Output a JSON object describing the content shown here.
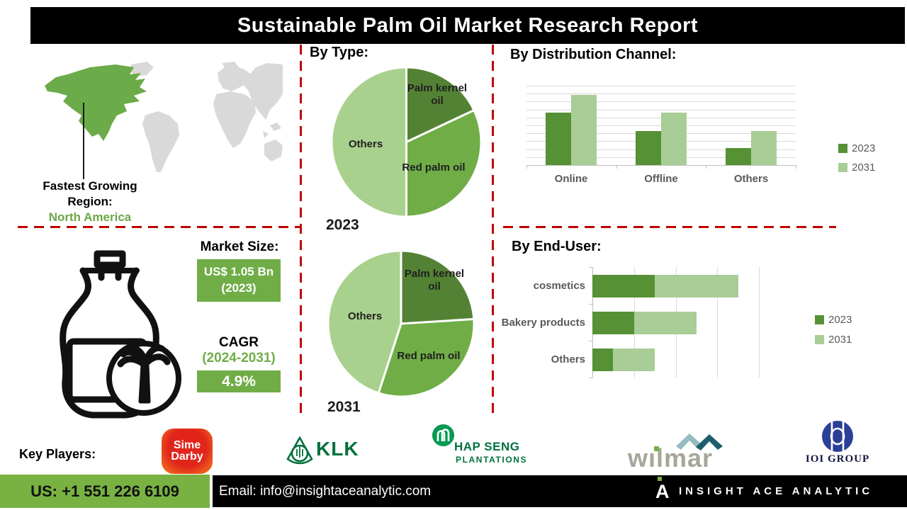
{
  "title": "Sustainable Palm Oil Market Research Report",
  "map": {
    "caption_line1": "Fastest Growing",
    "caption_line2": "Region:",
    "region": "North America",
    "highlight_color": "#70AD47",
    "base_color": "#D9D9D9"
  },
  "market_size": {
    "heading": "Market Size:",
    "value_line1": "US$ 1.05 Bn",
    "value_line2": "(2023)",
    "cagr_label": "CAGR",
    "cagr_period": "(2024-2031)",
    "cagr_value": "4.9%"
  },
  "colors": {
    "accent_green": "#70AD47",
    "dark_green": "#548235",
    "light_green": "#A9D18E",
    "dashed_line_red": "#C00000",
    "footer_green": "#79B242",
    "banner_black": "#000000"
  },
  "chart_data": [
    {
      "id": "by_type_2023",
      "type": "pie",
      "title": "By Type:",
      "year_label": "2023",
      "start_angle_deg": 0,
      "direction": "clockwise",
      "slices": [
        {
          "label": "Palm kernel oil",
          "value": 18,
          "color": "#548235"
        },
        {
          "label": "Red palm oil",
          "value": 32,
          "color": "#70AD47"
        },
        {
          "label": "Others",
          "value": 50,
          "color": "#A9D18E"
        }
      ]
    },
    {
      "id": "by_type_2031",
      "type": "pie",
      "title": "By Type:",
      "year_label": "2031",
      "start_angle_deg": 0,
      "direction": "clockwise",
      "slices": [
        {
          "label": "Palm kernel oil",
          "value": 24,
          "color": "#548235"
        },
        {
          "label": "Red palm oil",
          "value": 31,
          "color": "#70AD47"
        },
        {
          "label": "Others",
          "value": 45,
          "color": "#A9D18E"
        }
      ]
    },
    {
      "id": "distribution_channel",
      "type": "bar",
      "title": "By  Distribution Channel:",
      "categories": [
        "Online",
        "Offline",
        "Others"
      ],
      "series": [
        {
          "name": "2023",
          "color": "#569135",
          "values": [
            6.6,
            4.3,
            2.1
          ]
        },
        {
          "name": "2031",
          "color": "#A9CD96",
          "values": [
            8.8,
            6.6,
            4.3
          ]
        }
      ],
      "ylim": [
        0,
        10
      ],
      "grid": true,
      "legend_position": "right"
    },
    {
      "id": "end_user",
      "type": "bar",
      "orientation": "horizontal",
      "stacked": true,
      "title": "By End-User:",
      "categories": [
        "cosmetics",
        "Bakery products",
        "Others"
      ],
      "series": [
        {
          "name": "2023",
          "color": "#569135",
          "values": [
            1.5,
            1.0,
            0.5
          ]
        },
        {
          "name": "2031",
          "color": "#A9CD96",
          "values": [
            2.0,
            1.5,
            1.0
          ]
        }
      ],
      "xlim": [
        0,
        4
      ],
      "grid": true,
      "legend_position": "right"
    }
  ],
  "sections": {
    "by_type_heading": "By Type:",
    "by_distribution_heading": "By  Distribution Channel:",
    "by_end_user_heading": "By End-User:"
  },
  "key_players": {
    "label": "Key Players:",
    "players": [
      {
        "name": "Sime Darby",
        "logo_line1": "Sime",
        "logo_line2": "Darby"
      },
      {
        "name": "KLK"
      },
      {
        "name": "HAP SENG",
        "sub": "PLANTATIONS"
      },
      {
        "name": "wilmar"
      },
      {
        "name": "IOI GROUP"
      }
    ]
  },
  "footer": {
    "phone": "US: +1 551 226 6109",
    "email": "Email: info@insightaceanalytic.com",
    "brand": "INSIGHT ACE ANALYTIC"
  }
}
